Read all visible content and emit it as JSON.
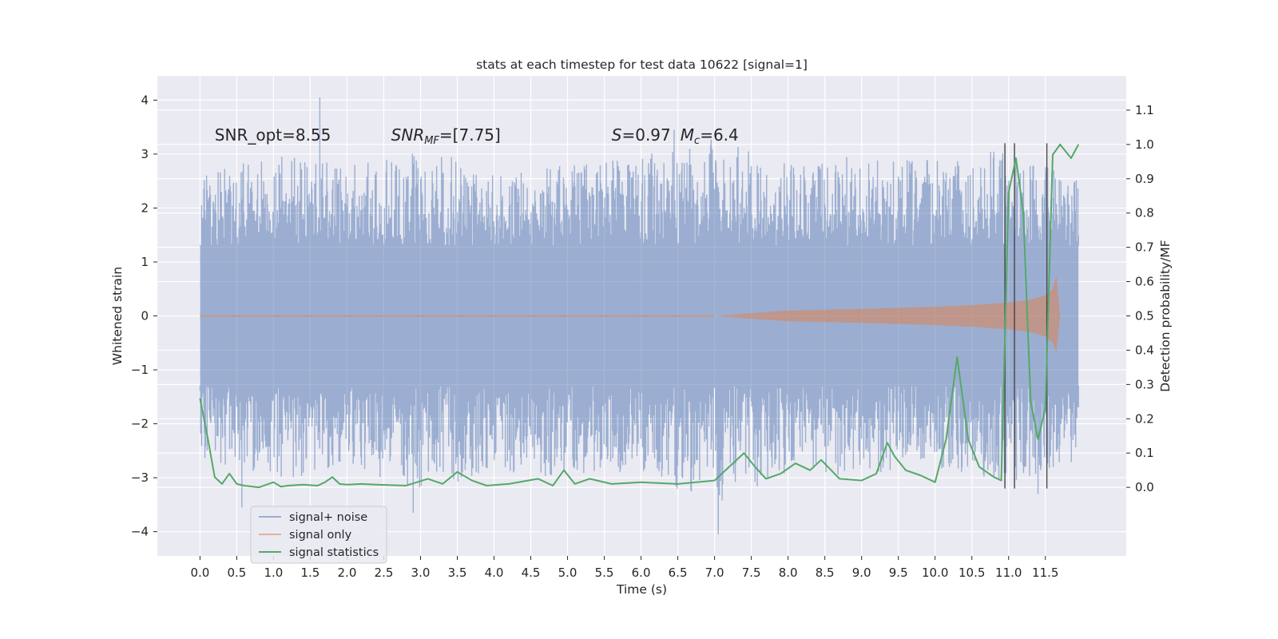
{
  "chart_data": {
    "type": "line",
    "title": "stats at each timestep for test data 10622 [signal=1]",
    "xlabel": "Time (s)",
    "ylabel": "Whitened strain",
    "ylabel_right": "Detection probability/MF",
    "xlim": [
      -0.58,
      12.6
    ],
    "ylim": [
      -4.45,
      4.45
    ],
    "ylim_right": [
      -0.2,
      1.2
    ],
    "x_ticks": [
      "0.0",
      "0.5",
      "1.0",
      "1.5",
      "2.0",
      "2.5",
      "3.0",
      "3.5",
      "4.0",
      "4.5",
      "5.0",
      "5.5",
      "6.0",
      "6.5",
      "7.0",
      "7.5",
      "8.0",
      "8.5",
      "9.0",
      "9.5",
      "10.0",
      "10.5",
      "11.0",
      "11.5"
    ],
    "y_ticks": [
      "4",
      "3",
      "2",
      "1",
      "0",
      "−1",
      "−2",
      "−3",
      "−4"
    ],
    "y_ticks_right": [
      "1.1",
      "1.0",
      "0.9",
      "0.8",
      "0.7",
      "0.6",
      "0.5",
      "0.4",
      "0.3",
      "0.2",
      "0.1",
      "0.0"
    ],
    "grid": true,
    "legend_position": "lower-left",
    "annotations": {
      "snr_opt": "SNR_opt=8.55",
      "snr_mf_main": "SNR",
      "snr_mf_sub": "MF",
      "snr_mf_value": "=[7.75]",
      "s_symbol": "S",
      "s_value": "=0.97",
      "mc_symbol": "M",
      "mc_sub": "c",
      "mc_value": "=6.4"
    },
    "vertical_lines_x": [
      10.95,
      11.08,
      11.52
    ],
    "vertical_lines_ymax": 3.2,
    "vertical_lines_ymin": -3.2,
    "series": [
      {
        "name": "signal+ noise",
        "color": "#4c72b0",
        "x_range": [
          0.0,
          11.95
        ],
        "band_core": 1.3,
        "envelope": {
          "x": [
            0.0,
            1.0,
            2.0,
            3.0,
            4.0,
            5.0,
            6.0,
            7.0,
            8.0,
            9.0,
            10.0,
            11.0,
            11.95
          ],
          "upper": [
            2.6,
            3.0,
            2.8,
            3.2,
            2.6,
            2.8,
            3.0,
            3.3,
            2.9,
            3.0,
            2.9,
            3.1,
            2.5
          ],
          "lower": [
            -2.6,
            -3.1,
            -2.8,
            -3.3,
            -2.9,
            -3.0,
            -2.9,
            -3.6,
            -2.9,
            -3.0,
            -2.8,
            -3.1,
            -2.7
          ]
        },
        "extremes": [
          {
            "x": 1.63,
            "y": 4.05
          },
          {
            "x": 0.57,
            "y": -3.55
          },
          {
            "x": 2.9,
            "y": -3.65
          },
          {
            "x": 7.05,
            "y": -4.05
          },
          {
            "x": 6.45,
            "y": 3.45
          },
          {
            "x": 11.4,
            "y": -3.3
          }
        ]
      },
      {
        "name": "signal only",
        "color": "#dd8452",
        "x": [
          7.0,
          8.0,
          9.0,
          10.0,
          10.5,
          11.0,
          11.3,
          11.5,
          11.6,
          11.65,
          11.7
        ],
        "amplitude": [
          0.0,
          0.1,
          0.13,
          0.17,
          0.2,
          0.25,
          0.3,
          0.38,
          0.5,
          0.75,
          0.0
        ]
      },
      {
        "name": "signal statistics",
        "color": "#55a868",
        "axis": "right",
        "x": [
          0.0,
          0.1,
          0.2,
          0.3,
          0.4,
          0.5,
          0.6,
          0.8,
          1.0,
          1.1,
          1.2,
          1.4,
          1.6,
          1.7,
          1.8,
          1.9,
          2.0,
          2.2,
          2.4,
          2.8,
          3.1,
          3.3,
          3.5,
          3.7,
          3.9,
          4.2,
          4.6,
          4.8,
          4.95,
          5.1,
          5.3,
          5.6,
          6.0,
          6.5,
          7.0,
          7.2,
          7.4,
          7.55,
          7.7,
          7.9,
          8.1,
          8.3,
          8.45,
          8.7,
          9.0,
          9.2,
          9.35,
          9.45,
          9.6,
          9.8,
          10.0,
          10.15,
          10.3,
          10.45,
          10.6,
          10.8,
          10.9,
          11.0,
          11.1,
          11.2,
          11.3,
          11.4,
          11.5,
          11.55,
          11.6,
          11.7,
          11.85,
          11.95
        ],
        "y": [
          0.26,
          0.15,
          0.03,
          0.01,
          0.04,
          0.01,
          0.005,
          0.0,
          0.015,
          0.002,
          0.005,
          0.008,
          0.005,
          0.015,
          0.03,
          0.01,
          0.008,
          0.01,
          0.008,
          0.005,
          0.025,
          0.01,
          0.045,
          0.02,
          0.005,
          0.01,
          0.025,
          0.005,
          0.05,
          0.01,
          0.025,
          0.01,
          0.015,
          0.01,
          0.02,
          0.06,
          0.1,
          0.06,
          0.025,
          0.04,
          0.07,
          0.05,
          0.08,
          0.025,
          0.02,
          0.04,
          0.13,
          0.09,
          0.05,
          0.035,
          0.015,
          0.14,
          0.38,
          0.14,
          0.06,
          0.03,
          0.02,
          0.86,
          0.96,
          0.8,
          0.25,
          0.14,
          0.23,
          0.6,
          0.97,
          1.0,
          0.96,
          1.0
        ]
      }
    ]
  }
}
